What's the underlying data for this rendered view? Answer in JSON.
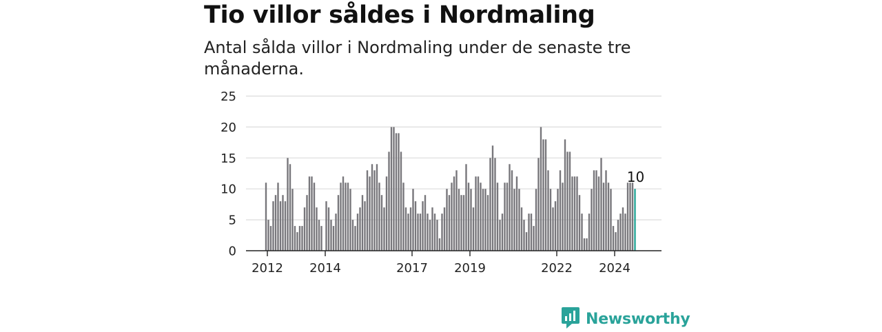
{
  "title": "Tio villor såldes i Nordmaling",
  "subtitle": "Antal sålda villor i Nordmaling under de senaste tre månaderna.",
  "brand": {
    "name": "Newsworthy",
    "icon": "newsworthy-logo-icon"
  },
  "colors": {
    "bar": "#77767b",
    "highlight": "#25a596",
    "grid": "#dcdcdc",
    "axis": "#222222",
    "brand": "#2aa39a"
  },
  "chart_data": {
    "type": "bar",
    "ylim": [
      0,
      25
    ],
    "yticks": [
      0,
      5,
      10,
      15,
      20,
      25
    ],
    "xtick_labels": [
      "2012",
      "2014",
      "2017",
      "2019",
      "2022",
      "2024"
    ],
    "xtick_bar_index": [
      0,
      24,
      60,
      84,
      120,
      144
    ],
    "values": [
      11,
      5,
      4,
      8,
      9,
      11,
      8,
      9,
      8,
      15,
      14,
      10,
      4,
      3,
      4,
      4,
      7,
      9,
      12,
      12,
      11,
      7,
      5,
      4,
      0,
      8,
      7,
      5,
      4,
      6,
      9,
      11,
      12,
      11,
      11,
      10,
      5,
      4,
      6,
      7,
      9,
      8,
      13,
      12,
      14,
      13,
      14,
      11,
      9,
      7,
      12,
      16,
      20,
      20,
      19,
      19,
      16,
      11,
      7,
      6,
      7,
      10,
      8,
      6,
      6,
      8,
      9,
      6,
      5,
      7,
      6,
      5,
      2,
      6,
      7,
      10,
      9,
      11,
      12,
      13,
      10,
      9,
      9,
      14,
      11,
      10,
      7,
      12,
      12,
      11,
      10,
      10,
      9,
      15,
      17,
      15,
      11,
      5,
      6,
      11,
      11,
      14,
      13,
      10,
      12,
      10,
      7,
      5,
      3,
      6,
      6,
      4,
      10,
      15,
      20,
      18,
      18,
      13,
      10,
      7,
      8,
      10,
      13,
      11,
      18,
      16,
      16,
      12,
      12,
      12,
      9,
      6,
      2,
      2,
      6,
      10,
      13,
      13,
      12,
      15,
      11,
      13,
      11,
      10,
      4,
      3,
      5,
      6,
      7,
      6,
      11,
      11,
      11,
      10
    ],
    "highlight_index": 153,
    "highlight_label": "10"
  }
}
